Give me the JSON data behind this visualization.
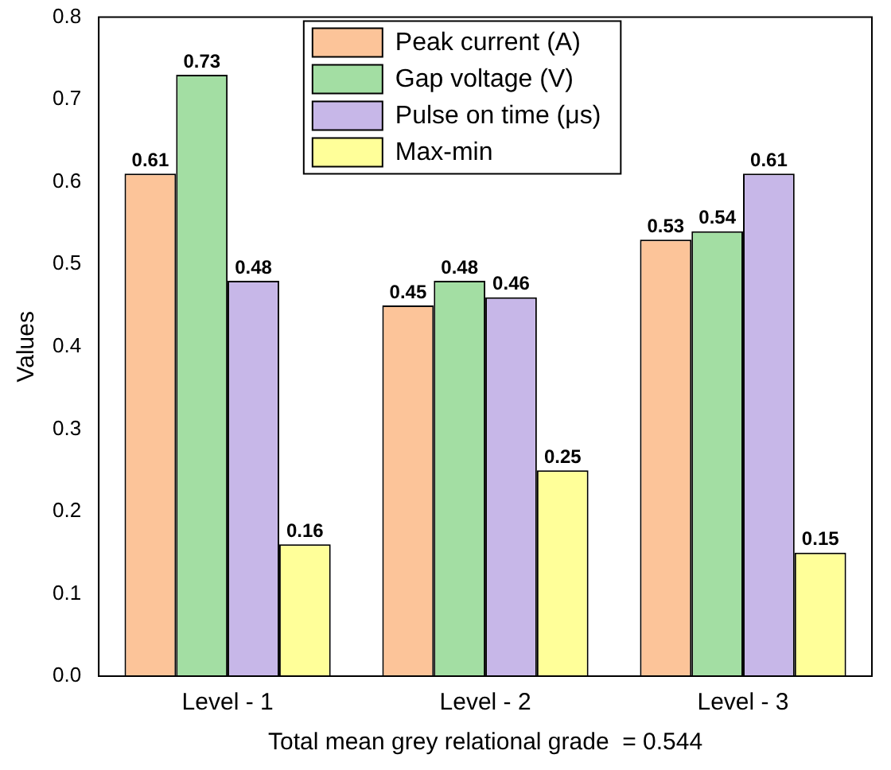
{
  "chart_data": {
    "type": "bar",
    "xlabel": "Total mean grey relational grade  = 0.544",
    "ylabel": "Values",
    "categories": [
      "Level - 1",
      "Level - 2",
      "Level - 3"
    ],
    "series": [
      {
        "name": "Peak current (A)",
        "color": "#fcc499",
        "values": [
          0.61,
          0.45,
          0.53
        ]
      },
      {
        "name": "Gap voltage (V)",
        "color": "#a3dea3",
        "values": [
          0.73,
          0.48,
          0.54
        ]
      },
      {
        "name": "Pulse on time (μs)",
        "color": "#c7b7e8",
        "values": [
          0.48,
          0.46,
          0.61
        ]
      },
      {
        "name": "Max-min",
        "color": "#ffff99",
        "values": [
          0.16,
          0.25,
          0.15
        ]
      }
    ],
    "ylim": [
      0,
      0.8
    ],
    "yticks": [
      {
        "value": 0,
        "label": "0.0"
      },
      0.1,
      0.2,
      0.3,
      0.4,
      0.5,
      0.6,
      0.7,
      0.8
    ],
    "grid": false,
    "legend": "top",
    "data_labels": true
  }
}
